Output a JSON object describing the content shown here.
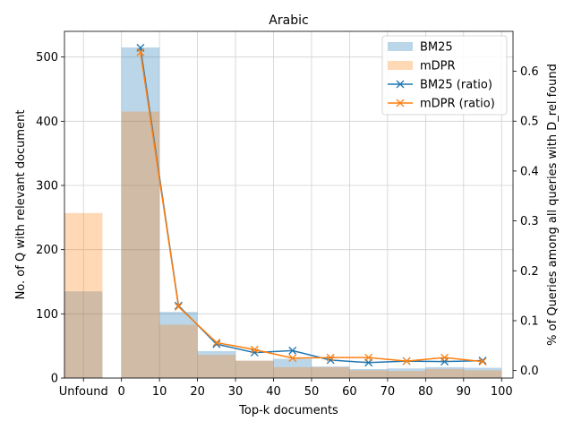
{
  "chart_data": {
    "type": "bar",
    "title": "Arabic",
    "xlabel": "Top-k documents",
    "ylabel": "No. of Q with relevant document",
    "y2label": "% of Queries among all queries with D_rel found",
    "xticks": [
      "Unfound",
      "0",
      "10",
      "20",
      "30",
      "40",
      "50",
      "60",
      "70",
      "80",
      "90",
      "100"
    ],
    "yticks": [
      "0",
      "100",
      "200",
      "300",
      "400",
      "500"
    ],
    "y2ticks": [
      "0.0",
      "0.1",
      "0.2",
      "0.3",
      "0.4",
      "0.5",
      "0.6"
    ],
    "ylim": [
      0,
      540
    ],
    "y2lim": [
      -0.015,
      0.68
    ],
    "grid": true,
    "legend_position": "top-right",
    "bins": [
      "Unfound",
      "0-10",
      "10-20",
      "20-30",
      "30-40",
      "40-50",
      "50-60",
      "60-70",
      "70-80",
      "80-90",
      "90-100"
    ],
    "bar_series": [
      {
        "name": "BM25",
        "color": "#1f77b4",
        "values": [
          135,
          515,
          103,
          42,
          27,
          30,
          18,
          14,
          15,
          17,
          16
        ]
      },
      {
        "name": "mDPR",
        "color": "#ff7f0e",
        "values": [
          257,
          415,
          83,
          36,
          27,
          17,
          17,
          12,
          11,
          14,
          12
        ]
      }
    ],
    "ratio_x": [
      5,
      15,
      25,
      35,
      45,
      55,
      65,
      75,
      85,
      95
    ],
    "ratio_series": [
      {
        "name": "BM25 (ratio)",
        "color": "#1f77b4",
        "marker": "x",
        "values": [
          0.647,
          0.13,
          0.053,
          0.036,
          0.04,
          0.021,
          0.016,
          0.019,
          0.018,
          0.02
        ]
      },
      {
        "name": "mDPR (ratio)",
        "color": "#ff7f0e",
        "marker": "x",
        "values": [
          0.638,
          0.128,
          0.056,
          0.042,
          0.025,
          0.026,
          0.026,
          0.019,
          0.026,
          0.018
        ]
      }
    ]
  }
}
